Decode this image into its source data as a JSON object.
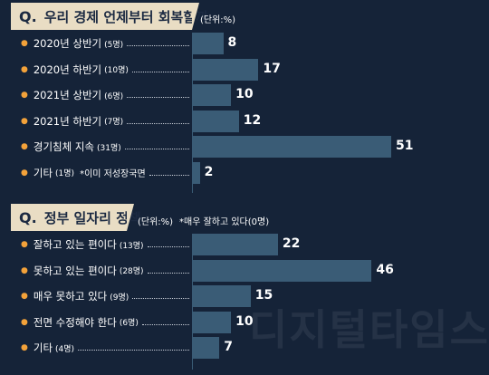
{
  "watermark": "디지털타임스",
  "chart_data": [
    {
      "type": "bar",
      "title": "우리 경제 언제부터 회복할까",
      "title_prefix": "Q.",
      "unit": "(단위:%)",
      "note": "*이미 저성장국면",
      "categories": [
        "2020년 상반기",
        "2020년 하반기",
        "2021년 상반기",
        "2021년 하반기",
        "경기침체 지속",
        "기타"
      ],
      "counts": [
        "(5명)",
        "(10명)",
        "(6명)",
        "(7명)",
        "(31명)",
        "(1명)"
      ],
      "values": [
        8,
        17,
        10,
        12,
        51,
        2
      ],
      "xlim": [
        0,
        51
      ],
      "bar_color": "#3a5c76"
    },
    {
      "type": "bar",
      "title": "정부 일자리 정책",
      "title_prefix": "Q.",
      "unit": "(단위:%)",
      "note": "*매우 잘하고 있다(0명)",
      "categories": [
        "잘하고 있는 편이다",
        "못하고 있는 편이다",
        "매우 못하고 있다",
        "전면 수정해야 한다",
        "기타"
      ],
      "counts": [
        "(13명)",
        "(28명)",
        "(9명)",
        "(6명)",
        "(4명)"
      ],
      "values": [
        22,
        46,
        15,
        10,
        7
      ],
      "xlim": [
        0,
        51
      ],
      "bar_color": "#3a5c76"
    }
  ]
}
